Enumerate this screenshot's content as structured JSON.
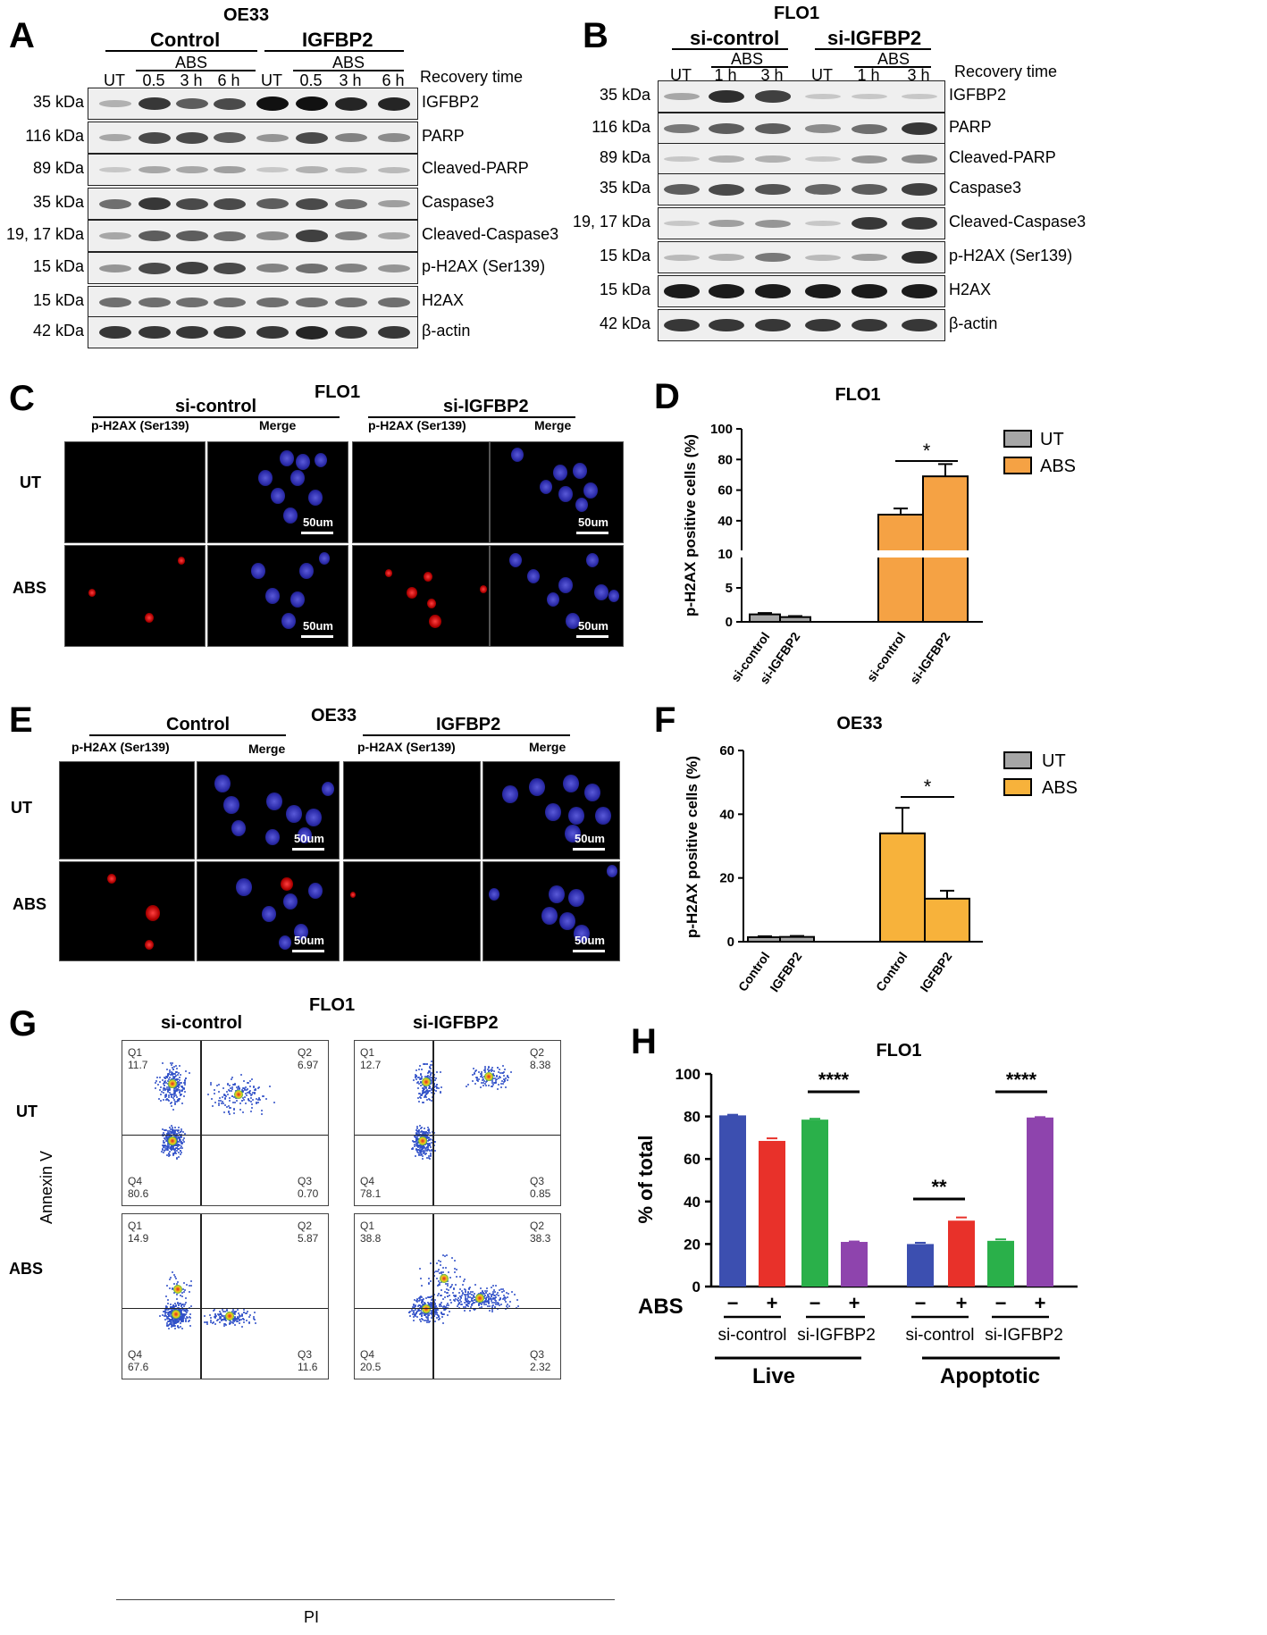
{
  "panelA": {
    "letter": "A",
    "cell_line": "OE33",
    "group1": "Control",
    "group2": "IGFBP2",
    "lanes": [
      "UT",
      "0.5 h",
      "3 h",
      "6 h",
      "UT",
      "0.5 h",
      "3 h",
      "6 h"
    ],
    "abs": "ABS",
    "recovery": "Recovery time",
    "rows": [
      {
        "kda": "35 kDa",
        "name": "IGFBP2"
      },
      {
        "kda": "116 kDa",
        "name": "PARP"
      },
      {
        "kda": "89 kDa",
        "name": "Cleaved-PARP"
      },
      {
        "kda": "35 kDa",
        "name": "Caspase3"
      },
      {
        "kda": "19, 17 kDa",
        "name": "Cleaved-Caspase3"
      },
      {
        "kda": "15 kDa",
        "name": "p-H2AX (Ser139)"
      },
      {
        "kda": "15 kDa",
        "name": "H2AX"
      },
      {
        "kda": "42 kDa",
        "name": "β-actin"
      }
    ]
  },
  "panelB": {
    "letter": "B",
    "cell_line": "FLO1",
    "group1": "si-control",
    "group2": "si-IGFBP2",
    "lanes": [
      "UT",
      "1 h",
      "3 h",
      "UT",
      "1 h",
      "3 h"
    ],
    "abs": "ABS",
    "recovery": "Recovery time",
    "rows": [
      {
        "kda": "35 kDa",
        "name": "IGFBP2"
      },
      {
        "kda": "116 kDa",
        "name": "PARP"
      },
      {
        "kda": "89 kDa",
        "name": "Cleaved-PARP"
      },
      {
        "kda": "35 kDa",
        "name": "Caspase3"
      },
      {
        "kda": "19, 17 kDa",
        "name": "Cleaved-Caspase3"
      },
      {
        "kda": "15 kDa",
        "name": "p-H2AX (Ser139)"
      },
      {
        "kda": "15 kDa",
        "name": "H2AX"
      },
      {
        "kda": "42 kDa",
        "name": "β-actin"
      }
    ]
  },
  "panelC": {
    "letter": "C",
    "cell_line": "FLO1",
    "group1": "si-control",
    "group2": "si-IGFBP2",
    "col1": "p-H2AX (Ser139)",
    "col2": "Merge",
    "row1": "UT",
    "row2": "ABS",
    "scale": "50um"
  },
  "panelE": {
    "letter": "E",
    "cell_line": "OE33",
    "group1": "Control",
    "group2": "IGFBP2",
    "col1": "p-H2AX (Ser139)",
    "col2": "Merge",
    "row1": "UT",
    "row2": "ABS",
    "scale": "50um"
  },
  "panelG": {
    "letter": "G",
    "cell_line": "FLO1",
    "group1": "si-control",
    "group2": "si-IGFBP2",
    "row1": "UT",
    "row2": "ABS",
    "ylabel": "Annexin V",
    "xlabel": "PI",
    "plots": [
      {
        "q1": "Q1",
        "q1v": "11.7",
        "q2": "Q2",
        "q2v": "6.97",
        "q3": "Q3",
        "q3v": "0.70",
        "q4": "Q4",
        "q4v": "80.6"
      },
      {
        "q1": "Q1",
        "q1v": "12.7",
        "q2": "Q2",
        "q2v": "8.38",
        "q3": "Q3",
        "q3v": "0.85",
        "q4": "Q4",
        "q4v": "78.1"
      },
      {
        "q1": "Q1",
        "q1v": "14.9",
        "q2": "Q2",
        "q2v": "5.87",
        "q3": "Q3",
        "q3v": "11.6",
        "q4": "Q4",
        "q4v": "67.6"
      },
      {
        "q1": "Q1",
        "q1v": "38.8",
        "q2": "Q2",
        "q2v": "38.3",
        "q3": "Q3",
        "q3v": "2.32",
        "q4": "Q4",
        "q4v": "20.5"
      }
    ]
  },
  "chart_data": [
    {
      "id": "D",
      "type": "bar",
      "letter": "D",
      "title": "FLO1",
      "ylabel": "p-H2AX positive cells (%)",
      "categories": [
        "si-control",
        "si-IGFBP2",
        "si-control",
        "si-IGFBP2"
      ],
      "series": [
        {
          "name": "UT",
          "color": "#a6a6a6",
          "values": [
            1.1,
            0.7,
            null,
            null
          ],
          "errors": [
            0.2,
            0.15,
            null,
            null
          ]
        },
        {
          "name": "ABS",
          "color": "#f5a244",
          "values": [
            null,
            null,
            44,
            69
          ],
          "errors": [
            null,
            null,
            4,
            8
          ]
        }
      ],
      "ylim": [
        0,
        100
      ],
      "yticks": [
        "0",
        "5",
        "10",
        "40",
        "60",
        "80",
        "100"
      ],
      "axis_break": true,
      "significance": "*"
    },
    {
      "id": "F",
      "type": "bar",
      "letter": "F",
      "title": "OE33",
      "ylabel": "p-H2AX positive cells (%)",
      "categories": [
        "Control",
        "IGFBP2",
        "Control",
        "IGFBP2"
      ],
      "series": [
        {
          "name": "UT",
          "color": "#a6a6a6",
          "values": [
            1.4,
            1.5,
            null,
            null
          ],
          "errors": [
            0.3,
            0.3,
            null,
            null
          ]
        },
        {
          "name": "ABS",
          "color": "#f7b23b",
          "values": [
            null,
            null,
            34,
            13.5
          ],
          "errors": [
            null,
            null,
            8,
            2.5
          ]
        }
      ],
      "ylim": [
        0,
        60
      ],
      "yticks": [
        "0",
        "20",
        "40",
        "60"
      ],
      "significance": "*"
    },
    {
      "id": "H",
      "type": "bar",
      "letter": "H",
      "title": "FLO1",
      "ylabel": "% of total",
      "categories": [
        "si-control −",
        "si-control +",
        "si-IGFBP2 −",
        "si-IGFBP2 +",
        "si-control −",
        "si-control +",
        "si-IGFBP2 −",
        "si-IGFBP2 +"
      ],
      "values": [
        80.5,
        68.5,
        78.5,
        21,
        20,
        31,
        21.5,
        79.5
      ],
      "errors": [
        0.3,
        1.2,
        0.4,
        0.2,
        0.6,
        1.5,
        0.7,
        0.2
      ],
      "colors": [
        "#3c4fb0",
        "#e8312a",
        "#2ab04a",
        "#8e44ad",
        "#3c4fb0",
        "#e8312a",
        "#2ab04a",
        "#8e44ad"
      ],
      "ylim": [
        0,
        100
      ],
      "yticks": [
        "0",
        "20",
        "40",
        "60",
        "80",
        "100"
      ],
      "abs_label": "ABS",
      "minus": "−",
      "plus": "+",
      "groups": [
        "Live",
        "Apoptotic"
      ],
      "sub_groups": [
        "si-control",
        "si-IGFBP2"
      ],
      "significance": [
        "****",
        "**",
        "****"
      ]
    }
  ]
}
